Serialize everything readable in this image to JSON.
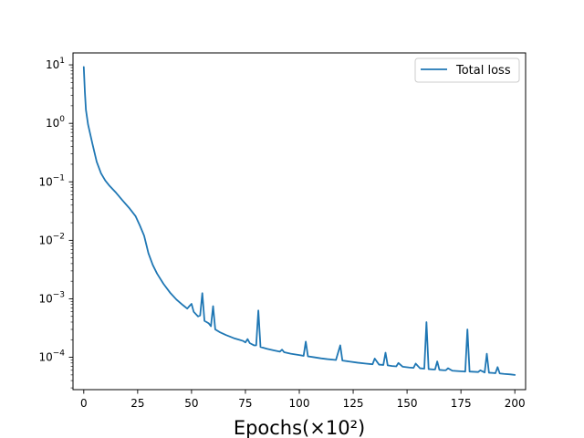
{
  "chart_data": {
    "type": "line",
    "xlabel": "Epochs(×10²)",
    "ylabel": "",
    "yscale": "log",
    "xlim": [
      -5,
      205
    ],
    "ylim": [
      2.8e-05,
      16
    ],
    "legend_position": "top-right",
    "grid": false,
    "xticks": [
      0,
      25,
      50,
      75,
      100,
      125,
      150,
      175,
      200
    ],
    "yticks": [
      {
        "exp": 1,
        "value": 10
      },
      {
        "exp": 0,
        "value": 1
      },
      {
        "exp": -1,
        "value": 0.1
      },
      {
        "exp": -2,
        "value": 0.01
      },
      {
        "exp": -3,
        "value": 0.001
      },
      {
        "exp": -4,
        "value": 0.0001
      }
    ],
    "series": [
      {
        "name": "Total loss",
        "color": "#1f77b4",
        "x": [
          0,
          0.5,
          1,
          2,
          4,
          6,
          8,
          10,
          12,
          15,
          18,
          21,
          24,
          26,
          28,
          29,
          30,
          32,
          34,
          37,
          40,
          43,
          46,
          48,
          49,
          50,
          51,
          53,
          54,
          55,
          56,
          58,
          59,
          60,
          61,
          63,
          66,
          70,
          72,
          74,
          75,
          76,
          77,
          79,
          80,
          81,
          82,
          85,
          88,
          91,
          92,
          93,
          96,
          100,
          102,
          103,
          104,
          107,
          110,
          113,
          117,
          119,
          120,
          123,
          127,
          131,
          134,
          135,
          137,
          139,
          140,
          141,
          143,
          145,
          146,
          148,
          151,
          153,
          154,
          156,
          158,
          159,
          160,
          162,
          163,
          164,
          165,
          167,
          168,
          169,
          171,
          174,
          177,
          178,
          179,
          181,
          183,
          184,
          186,
          187,
          188,
          190,
          191,
          192,
          193,
          195,
          198,
          200
        ],
        "y": [
          9.2,
          3.5,
          1.7,
          0.95,
          0.45,
          0.22,
          0.14,
          0.105,
          0.085,
          0.065,
          0.048,
          0.036,
          0.026,
          0.018,
          0.012,
          0.0085,
          0.006,
          0.0038,
          0.0027,
          0.0018,
          0.00128,
          0.00097,
          0.00078,
          0.00068,
          0.00075,
          0.00082,
          0.0006,
          0.0005,
          0.00052,
          0.00125,
          0.00042,
          0.00038,
          0.00034,
          0.00075,
          0.0003,
          0.00027,
          0.00024,
          0.00021,
          0.0002,
          0.00019,
          0.00018,
          0.000205,
          0.000175,
          0.00016,
          0.00016,
          0.00063,
          0.00015,
          0.00014,
          0.000132,
          0.000125,
          0.000135,
          0.000122,
          0.000115,
          0.000109,
          0.000106,
          0.000185,
          0.000104,
          0.0001,
          9.6e-05,
          9.3e-05,
          9e-05,
          0.00016,
          8.8e-05,
          8.5e-05,
          8.1e-05,
          7.8e-05,
          7.6e-05,
          9.5e-05,
          7.5e-05,
          7.4e-05,
          0.00012,
          7.3e-05,
          7.1e-05,
          7e-05,
          8e-05,
          6.9e-05,
          6.7e-05,
          6.6e-05,
          7.8e-05,
          6.5e-05,
          6.4e-05,
          0.0004,
          6.3e-05,
          6.2e-05,
          6.2e-05,
          8.5e-05,
          6.1e-05,
          6e-05,
          6e-05,
          6.5e-05,
          5.9e-05,
          5.8e-05,
          5.7e-05,
          0.0003,
          5.7e-05,
          5.65e-05,
          5.6e-05,
          6e-05,
          5.5e-05,
          0.000115,
          5.45e-05,
          5.4e-05,
          5.35e-05,
          6.8e-05,
          5.3e-05,
          5.2e-05,
          5.1e-05,
          5e-05
        ]
      }
    ]
  }
}
